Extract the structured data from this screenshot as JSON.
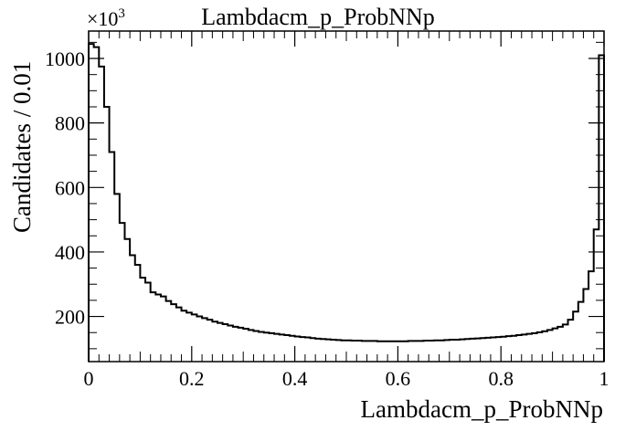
{
  "chart_data": {
    "type": "histogram",
    "title": "Lambdacm_p_ProbNNp",
    "xlabel": "Lambdacm_p_ProbNNp",
    "ylabel": "Candidates / 0.01",
    "y_multiplier": "×10",
    "y_multiplier_exp": "3",
    "xlim": [
      0,
      1
    ],
    "ylim": [
      60,
      1085
    ],
    "bin_width": 0.01,
    "x_ticks": [
      {
        "v": 0,
        "label": "0"
      },
      {
        "v": 0.2,
        "label": "0.2"
      },
      {
        "v": 0.4,
        "label": "0.4"
      },
      {
        "v": 0.6,
        "label": "0.6"
      },
      {
        "v": 0.8,
        "label": "0.8"
      },
      {
        "v": 1,
        "label": "1"
      }
    ],
    "y_ticks": [
      {
        "v": 200,
        "label": "200"
      },
      {
        "v": 400,
        "label": "400"
      },
      {
        "v": 600,
        "label": "600"
      },
      {
        "v": 800,
        "label": "800"
      },
      {
        "v": 1000,
        "label": "1000"
      }
    ],
    "values": [
      1045,
      1035,
      975,
      850,
      710,
      580,
      490,
      440,
      390,
      360,
      320,
      305,
      275,
      268,
      262,
      248,
      238,
      228,
      218,
      212,
      206,
      200,
      195,
      190,
      184,
      180,
      176,
      172,
      168,
      165,
      162,
      158,
      155,
      152,
      150,
      148,
      146,
      144,
      142,
      140,
      138,
      136,
      135,
      133,
      131,
      130,
      129,
      128,
      127,
      126,
      126,
      125,
      125,
      124,
      124,
      124,
      123,
      123,
      123,
      123,
      123,
      123,
      124,
      124,
      124,
      125,
      125,
      126,
      126,
      127,
      128,
      128,
      129,
      130,
      131,
      132,
      133,
      134,
      135,
      136,
      137,
      139,
      140,
      142,
      144,
      146,
      148,
      151,
      154,
      158,
      163,
      168,
      175,
      190,
      215,
      245,
      285,
      340,
      470,
      1010
    ]
  }
}
